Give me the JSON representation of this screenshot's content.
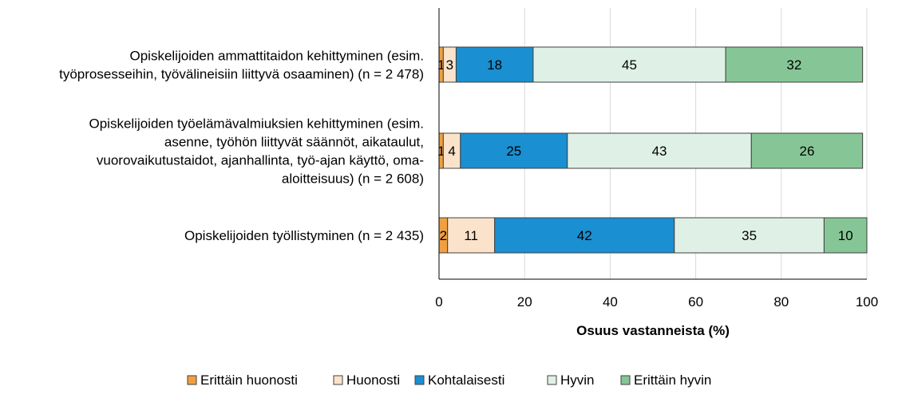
{
  "chart_data": {
    "type": "bar",
    "orientation": "horizontal",
    "stacked": true,
    "categories": [
      [
        "Opiskelijoiden ammattitaidon kehittyminen (esim.",
        "työprosesseihin, työvälineisiin liittyvä osaaminen) (n = 2 478)"
      ],
      [
        "Opiskelijoiden työelämävalmiuksien kehittyminen (esim.",
        "asenne, työhön liittyvät säännöt, aikataulut,",
        "vuorovaikutustaidot, ajanhallinta, työ-ajan käyttö, oma-",
        "aloitteisuus) (n = 2 608)"
      ],
      [
        "Opiskelijoiden työllistyminen (n = 2 435)"
      ]
    ],
    "series": [
      {
        "name": "Erittäin huonosti",
        "color": "#F0A040",
        "values": [
          1,
          1,
          2
        ]
      },
      {
        "name": "Huonosti",
        "color": "#FBE3CB",
        "values": [
          3,
          4,
          11
        ]
      },
      {
        "name": "Kohtalaisesti",
        "color": "#1A8FD1",
        "values": [
          18,
          25,
          42
        ]
      },
      {
        "name": "Hyvin",
        "color": "#DFF1E6",
        "values": [
          45,
          43,
          35
        ]
      },
      {
        "name": "Erittäin hyvin",
        "color": "#86C696",
        "values": [
          32,
          26,
          10
        ]
      }
    ],
    "xlabel": "Osuus vastanneista (%)",
    "xlim": [
      0,
      100
    ],
    "xticks": [
      0,
      20,
      40,
      60,
      80,
      100
    ],
    "grid": "vertical",
    "legend_position": "bottom"
  }
}
